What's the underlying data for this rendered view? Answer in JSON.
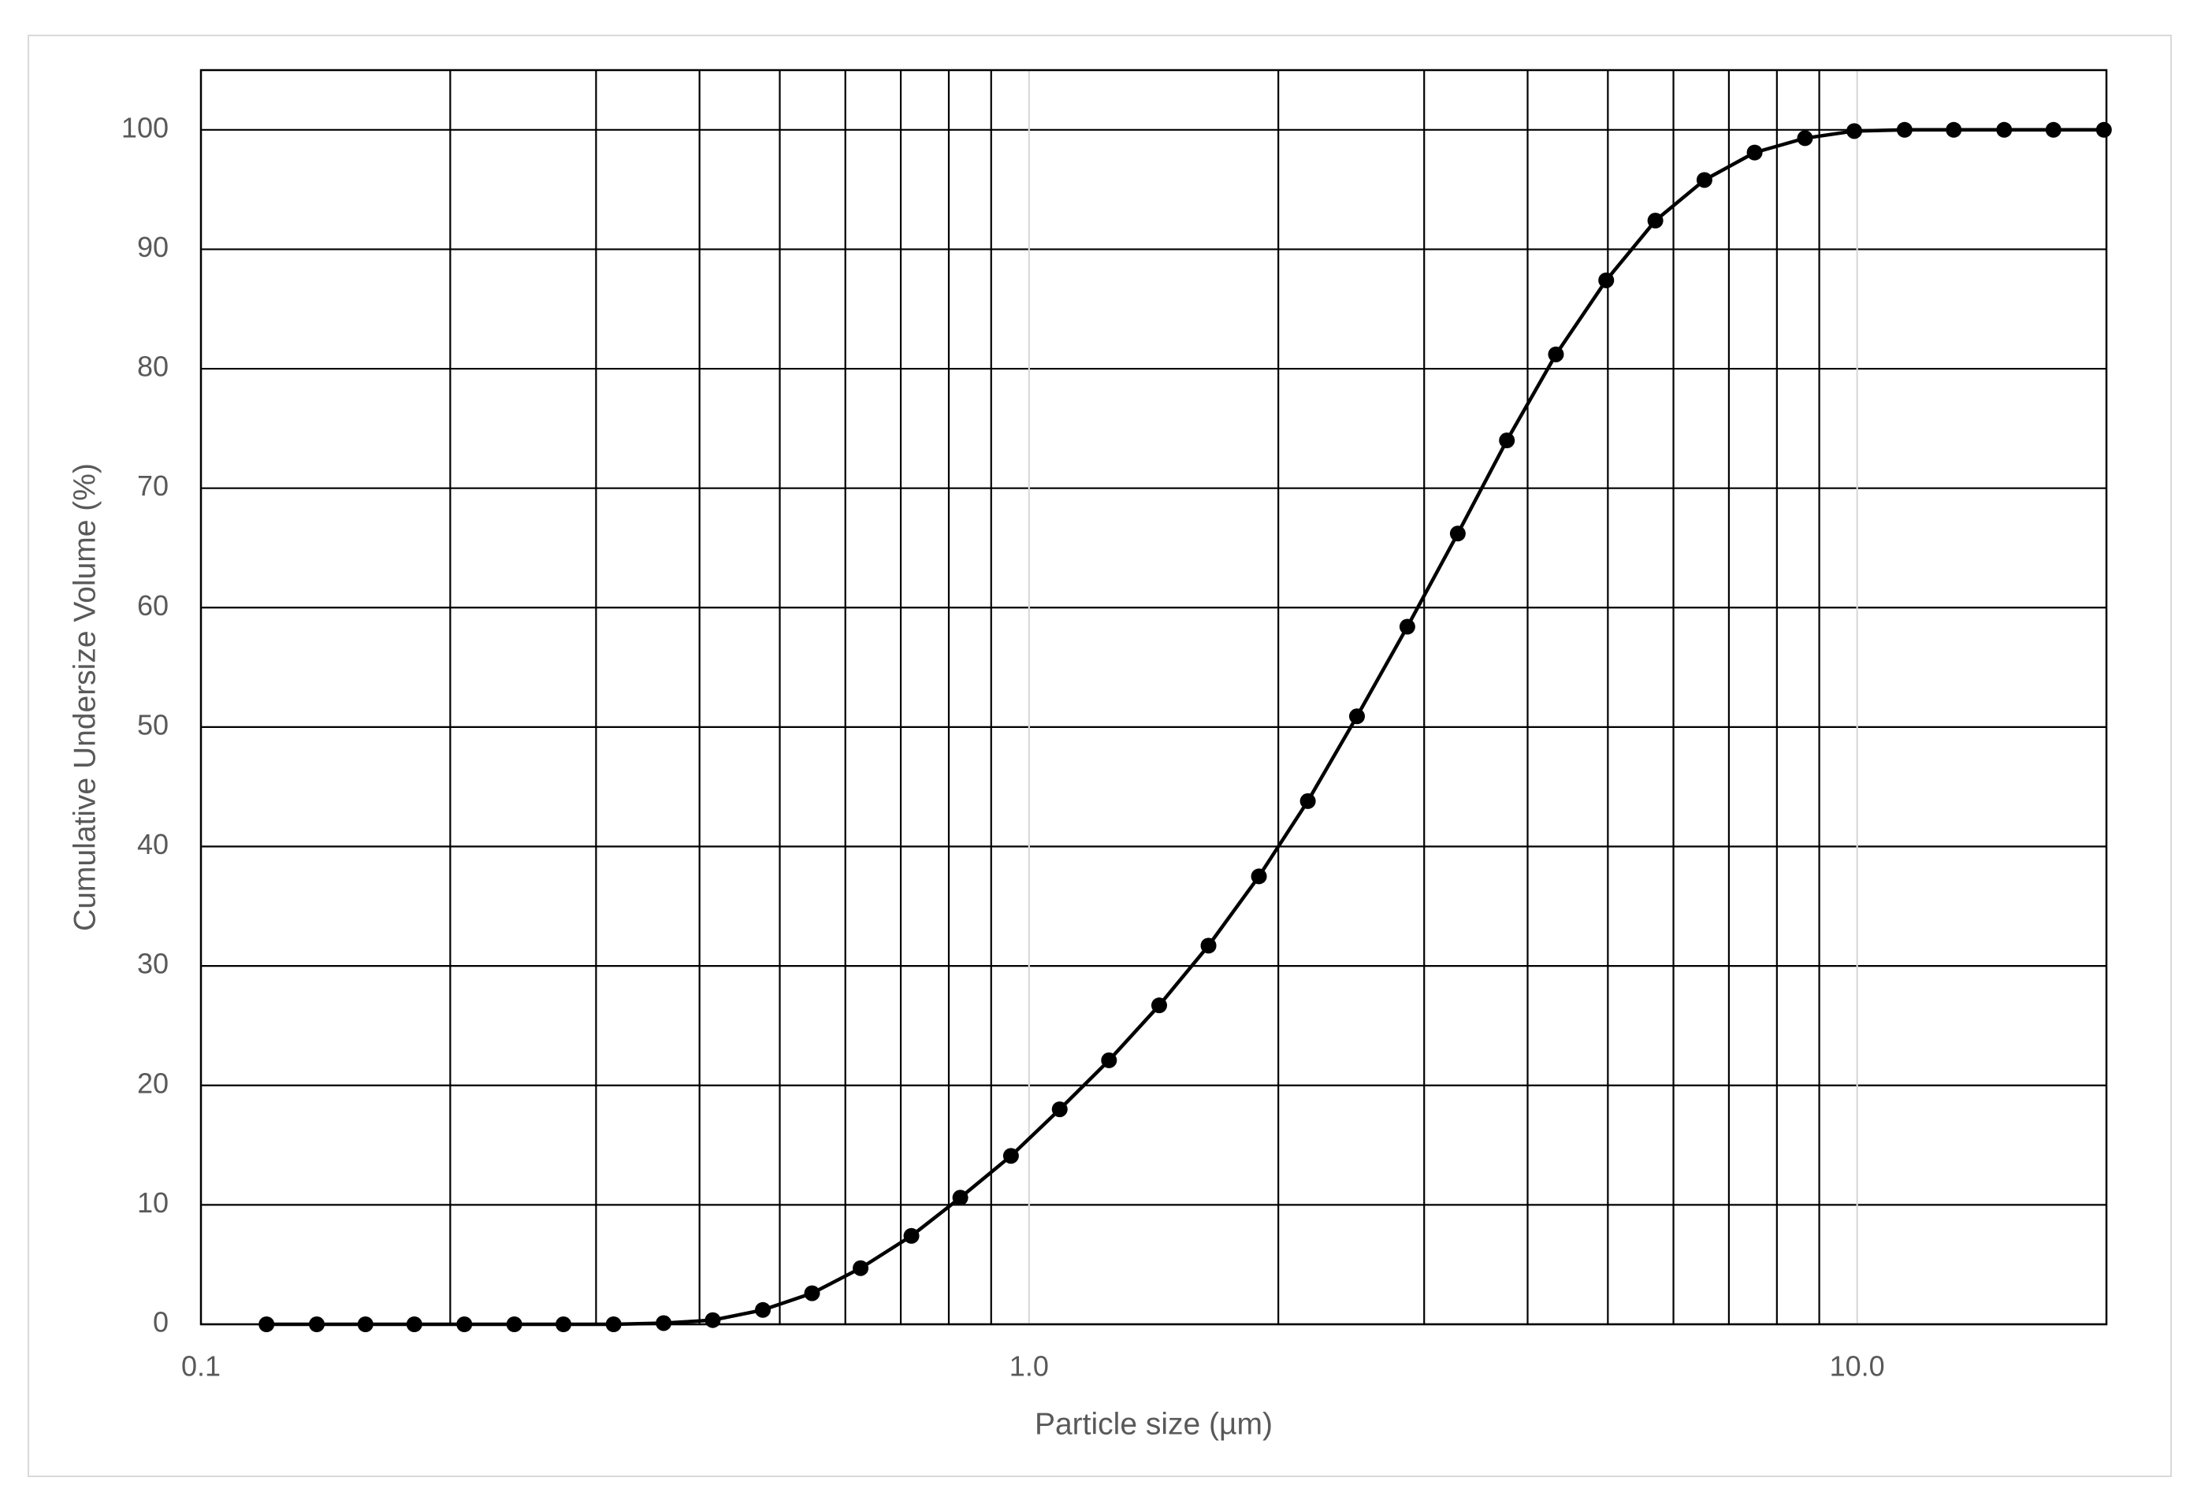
{
  "chart_data": {
    "type": "line",
    "xlabel": "Particle size (µm)",
    "ylabel": "Cumulative Undersize  Volume (%)",
    "xscale": "log",
    "xlim": [
      0.1,
      20
    ],
    "xticks": [
      {
        "value": 0.1,
        "label": "0.1"
      },
      {
        "value": 1,
        "label": "1.0"
      },
      {
        "value": 10,
        "label": "10.0"
      }
    ],
    "xminorticks": [
      0.2,
      0.3,
      0.4,
      0.5,
      0.6,
      0.7,
      0.8,
      0.9,
      2,
      3,
      4,
      5,
      6,
      7,
      8,
      9
    ],
    "ylim": [
      0,
      105
    ],
    "yticks": [
      0,
      10,
      20,
      30,
      40,
      50,
      60,
      70,
      80,
      90,
      100
    ],
    "grid": true,
    "series": [
      {
        "color": "#000000",
        "x": [
          0.12,
          0.138,
          0.158,
          0.181,
          0.208,
          0.239,
          0.274,
          0.315,
          0.362,
          0.415,
          0.477,
          0.547,
          0.626,
          0.721,
          0.826,
          0.951,
          1.089,
          1.249,
          1.436,
          1.647,
          1.895,
          2.171,
          2.489,
          2.863,
          3.294,
          3.776,
          4.328,
          4.977,
          5.706,
          6.54,
          7.52,
          8.65,
          9.92,
          11.41,
          13.08,
          15.05,
          17.26,
          19.86
        ],
        "values": [
          0,
          0,
          0,
          0,
          0,
          0,
          0,
          0,
          0.1,
          0.35,
          1.2,
          2.6,
          4.7,
          7.4,
          10.6,
          14.1,
          18.0,
          22.1,
          26.7,
          31.7,
          37.5,
          43.8,
          50.9,
          58.4,
          66.2,
          74.0,
          81.2,
          87.4,
          92.4,
          95.8,
          98.1,
          99.3,
          99.9,
          100,
          100,
          100,
          100,
          100
        ]
      }
    ]
  }
}
